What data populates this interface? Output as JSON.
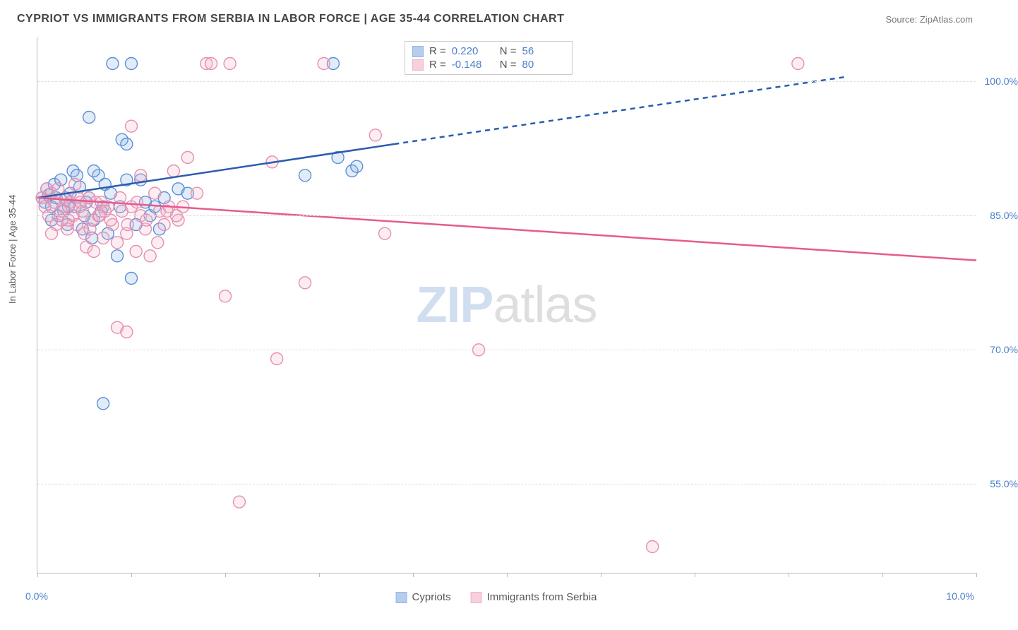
{
  "title": "CYPRIOT VS IMMIGRANTS FROM SERBIA IN LABOR FORCE | AGE 35-44 CORRELATION CHART",
  "source_label": "Source: ZipAtlas.com",
  "ylabel": "In Labor Force | Age 35-44",
  "watermark_zip": "ZIP",
  "watermark_atlas": "atlas",
  "chart": {
    "type": "scatter",
    "xlim": [
      0,
      10
    ],
    "ylim": [
      45,
      105
    ],
    "x_min_label": "0.0%",
    "x_max_label": "10.0%",
    "yticks": [
      55.0,
      70.0,
      85.0,
      100.0
    ],
    "ytick_labels": [
      "55.0%",
      "70.0%",
      "85.0%",
      "100.0%"
    ],
    "xticks": [
      0,
      1.0,
      2.0,
      3.0,
      4.0,
      5.0,
      6.0,
      7.0,
      8.0,
      9.0,
      10.0
    ],
    "grid_color": "#dddddd",
    "axis_color": "#bbbbbb",
    "label_color": "#4a7ec9",
    "background_color": "#ffffff",
    "marker_radius": 8.5,
    "marker_stroke_width": 1.4,
    "marker_fill_opacity": 0.25,
    "trend_line_width": 2.5,
    "series": [
      {
        "name": "Cypriots",
        "color_stroke": "#5b8fd6",
        "color_fill": "#8db4e3",
        "trend_color": "#2a5db0",
        "R": "0.220",
        "N": "56",
        "trend": {
          "x1": 0.0,
          "y1": 87.0,
          "x2": 3.8,
          "y2": 93.0,
          "x2_ext": 8.6,
          "y2_ext": 100.5
        },
        "points": [
          [
            0.05,
            87.0
          ],
          [
            0.08,
            86.5
          ],
          [
            0.1,
            88.0
          ],
          [
            0.12,
            87.3
          ],
          [
            0.15,
            86.0
          ],
          [
            0.18,
            88.5
          ],
          [
            0.2,
            87.0
          ],
          [
            0.25,
            89.0
          ],
          [
            0.28,
            85.5
          ],
          [
            0.3,
            86.8
          ],
          [
            0.32,
            84.0
          ],
          [
            0.35,
            87.5
          ],
          [
            0.38,
            90.0
          ],
          [
            0.4,
            86.0
          ],
          [
            0.45,
            88.2
          ],
          [
            0.5,
            85.0
          ],
          [
            0.55,
            87.0
          ],
          [
            0.6,
            84.5
          ],
          [
            0.65,
            89.5
          ],
          [
            0.7,
            86.0
          ],
          [
            0.75,
            83.0
          ],
          [
            0.8,
            102.0
          ],
          [
            0.55,
            96.0
          ],
          [
            0.9,
            93.5
          ],
          [
            0.95,
            93.0
          ],
          [
            1.0,
            102.0
          ],
          [
            1.05,
            84.0
          ],
          [
            0.85,
            80.5
          ],
          [
            1.1,
            89.0
          ],
          [
            1.15,
            86.5
          ],
          [
            1.2,
            85.0
          ],
          [
            1.3,
            83.5
          ],
          [
            1.0,
            78.0
          ],
          [
            0.7,
            64.0
          ],
          [
            1.35,
            87.0
          ],
          [
            1.5,
            88.0
          ],
          [
            3.2,
            91.5
          ],
          [
            3.35,
            90.0
          ],
          [
            3.4,
            90.5
          ],
          [
            3.15,
            102.0
          ],
          [
            2.85,
            89.5
          ],
          [
            1.6,
            87.5
          ],
          [
            0.42,
            89.5
          ],
          [
            0.22,
            85.0
          ],
          [
            0.48,
            83.5
          ],
          [
            0.95,
            89.0
          ],
          [
            0.6,
            90.0
          ],
          [
            0.33,
            86.0
          ],
          [
            0.15,
            84.5
          ],
          [
            0.52,
            86.5
          ],
          [
            0.68,
            85.5
          ],
          [
            0.88,
            86.0
          ],
          [
            0.72,
            88.5
          ],
          [
            0.58,
            82.5
          ],
          [
            1.25,
            86.0
          ],
          [
            0.78,
            87.5
          ]
        ]
      },
      {
        "name": "Immigrants from Serbia",
        "color_stroke": "#e68fb0",
        "color_fill": "#f4b6cc",
        "trend_color": "#e75a8e",
        "R": "-0.148",
        "N": "80",
        "trend": {
          "x1": 0.0,
          "y1": 87.0,
          "x2": 10.0,
          "y2": 80.0
        },
        "points": [
          [
            0.05,
            87.0
          ],
          [
            0.08,
            86.0
          ],
          [
            0.1,
            88.0
          ],
          [
            0.12,
            85.0
          ],
          [
            0.15,
            87.5
          ],
          [
            0.18,
            86.5
          ],
          [
            0.2,
            84.0
          ],
          [
            0.22,
            88.0
          ],
          [
            0.25,
            85.5
          ],
          [
            0.28,
            86.0
          ],
          [
            0.3,
            87.0
          ],
          [
            0.32,
            83.5
          ],
          [
            0.35,
            86.5
          ],
          [
            0.38,
            85.0
          ],
          [
            0.4,
            88.5
          ],
          [
            0.42,
            84.0
          ],
          [
            0.45,
            86.0
          ],
          [
            0.48,
            85.5
          ],
          [
            0.5,
            83.0
          ],
          [
            0.55,
            87.0
          ],
          [
            0.58,
            84.5
          ],
          [
            0.62,
            86.5
          ],
          [
            0.65,
            85.0
          ],
          [
            0.7,
            82.5
          ],
          [
            0.75,
            86.0
          ],
          [
            0.8,
            84.0
          ],
          [
            0.85,
            82.0
          ],
          [
            0.9,
            85.5
          ],
          [
            0.95,
            83.0
          ],
          [
            1.0,
            86.0
          ],
          [
            1.05,
            81.0
          ],
          [
            1.0,
            95.0
          ],
          [
            1.1,
            85.0
          ],
          [
            1.15,
            83.5
          ],
          [
            1.2,
            80.5
          ],
          [
            0.85,
            72.5
          ],
          [
            0.95,
            72.0
          ],
          [
            1.3,
            85.5
          ],
          [
            1.35,
            84.0
          ],
          [
            1.4,
            86.0
          ],
          [
            1.45,
            90.0
          ],
          [
            1.5,
            84.5
          ],
          [
            1.55,
            86.0
          ],
          [
            1.6,
            91.5
          ],
          [
            1.7,
            87.5
          ],
          [
            1.8,
            102.0
          ],
          [
            1.85,
            102.0
          ],
          [
            2.05,
            102.0
          ],
          [
            2.0,
            76.0
          ],
          [
            2.15,
            53.0
          ],
          [
            2.5,
            91.0
          ],
          [
            2.55,
            69.0
          ],
          [
            2.85,
            77.5
          ],
          [
            3.05,
            102.0
          ],
          [
            3.6,
            94.0
          ],
          [
            3.7,
            83.0
          ],
          [
            4.7,
            70.0
          ],
          [
            6.55,
            48.0
          ],
          [
            8.1,
            102.0
          ],
          [
            1.25,
            87.5
          ],
          [
            0.52,
            81.5
          ],
          [
            0.68,
            86.5
          ],
          [
            0.78,
            84.5
          ],
          [
            0.88,
            87.0
          ],
          [
            0.15,
            83.0
          ],
          [
            0.33,
            84.5
          ],
          [
            0.43,
            87.0
          ],
          [
            0.6,
            81.0
          ],
          [
            1.1,
            89.5
          ],
          [
            1.28,
            82.0
          ],
          [
            1.48,
            85.0
          ],
          [
            0.72,
            85.5
          ],
          [
            0.26,
            84.5
          ],
          [
            0.46,
            86.5
          ],
          [
            0.56,
            83.5
          ],
          [
            0.66,
            85.0
          ],
          [
            0.96,
            84.0
          ],
          [
            1.06,
            86.5
          ],
          [
            1.16,
            84.5
          ],
          [
            1.38,
            85.5
          ]
        ]
      }
    ]
  },
  "legend": {
    "series1_label": "Cypriots",
    "series2_label": "Immigrants from Serbia"
  },
  "stats": {
    "r_label": "R =",
    "n_label": "N ="
  }
}
